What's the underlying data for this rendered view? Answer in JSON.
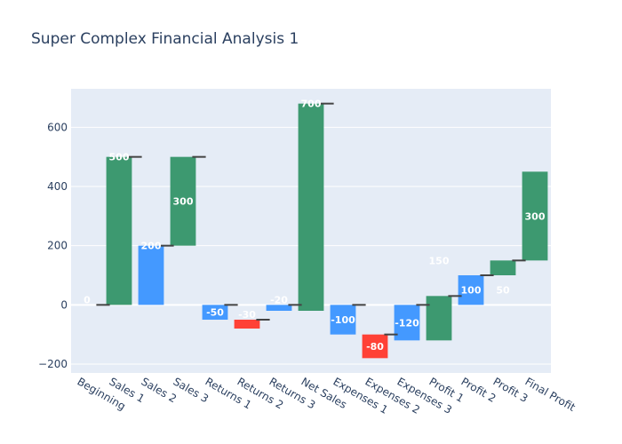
{
  "chart_data": {
    "type": "waterfall",
    "title": "Super Complex Financial Analysis 1",
    "xlabel": "",
    "ylabel": "",
    "ylim": [
      -230,
      730
    ],
    "yticks": [
      -200,
      0,
      200,
      400,
      600
    ],
    "categories": [
      "Beginning",
      "Sales 1",
      "Sales 2",
      "Sales 3",
      "Returns 1",
      "Returns 2",
      "Returns 3",
      "Net Sales",
      "Expenses 1",
      "Expenses 2",
      "Expenses 3",
      "Profit 1",
      "Profit 2",
      "Profit 3",
      "Final Profit"
    ],
    "bars": [
      {
        "x": "Beginning",
        "base": 0,
        "top": 0,
        "label": "0",
        "color": "#4499ff"
      },
      {
        "x": "Sales 1",
        "base": 0,
        "top": 500,
        "label": "500",
        "color": "#3d9970"
      },
      {
        "x": "Sales 2",
        "base": 0,
        "top": 200,
        "label": "200",
        "color": "#4499ff"
      },
      {
        "x": "Sales 3",
        "base": 200,
        "top": 500,
        "label": "300",
        "color": "#3d9970"
      },
      {
        "x": "Returns 1",
        "base": -50,
        "top": 0,
        "label": "-50",
        "color": "#4499ff"
      },
      {
        "x": "Returns 2",
        "base": -80,
        "top": -50,
        "label": "-30",
        "color": "#ff4136"
      },
      {
        "x": "Returns 3",
        "base": -20,
        "top": 0,
        "label": "-20",
        "color": "#4499ff"
      },
      {
        "x": "Net Sales",
        "base": -20,
        "top": 680,
        "label": "700",
        "color": "#3d9970"
      },
      {
        "x": "Expenses 1",
        "base": -100,
        "top": 0,
        "label": "-100",
        "color": "#4499ff"
      },
      {
        "x": "Expenses 2",
        "base": -180,
        "top": -100,
        "label": "-80",
        "color": "#ff4136"
      },
      {
        "x": "Expenses 3",
        "base": -120,
        "top": 0,
        "label": "-120",
        "color": "#4499ff"
      },
      {
        "x": "Profit 1",
        "base": -120,
        "top": 30,
        "label": "150",
        "color": "#3d9970"
      },
      {
        "x": "Profit 2",
        "base": 0,
        "top": 100,
        "label": "100",
        "color": "#4499ff"
      },
      {
        "x": "Profit 3",
        "base": 100,
        "top": 150,
        "label": "50",
        "color": "#3d9970"
      },
      {
        "x": "Final Profit",
        "base": 150,
        "top": 450,
        "label": "300",
        "color": "#3d9970"
      }
    ],
    "grid": true,
    "legend": "none"
  }
}
